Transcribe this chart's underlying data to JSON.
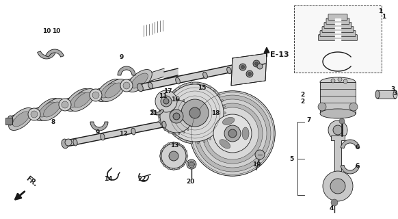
{
  "bg_color": "#ffffff",
  "fig_width": 5.82,
  "fig_height": 3.2,
  "dpi": 100,
  "ec": "#1a1a1a",
  "fc_gray": "#b0b0b0",
  "fc_light": "#d0d0d0",
  "fc_mid": "#999999",
  "fc_dark": "#606060"
}
